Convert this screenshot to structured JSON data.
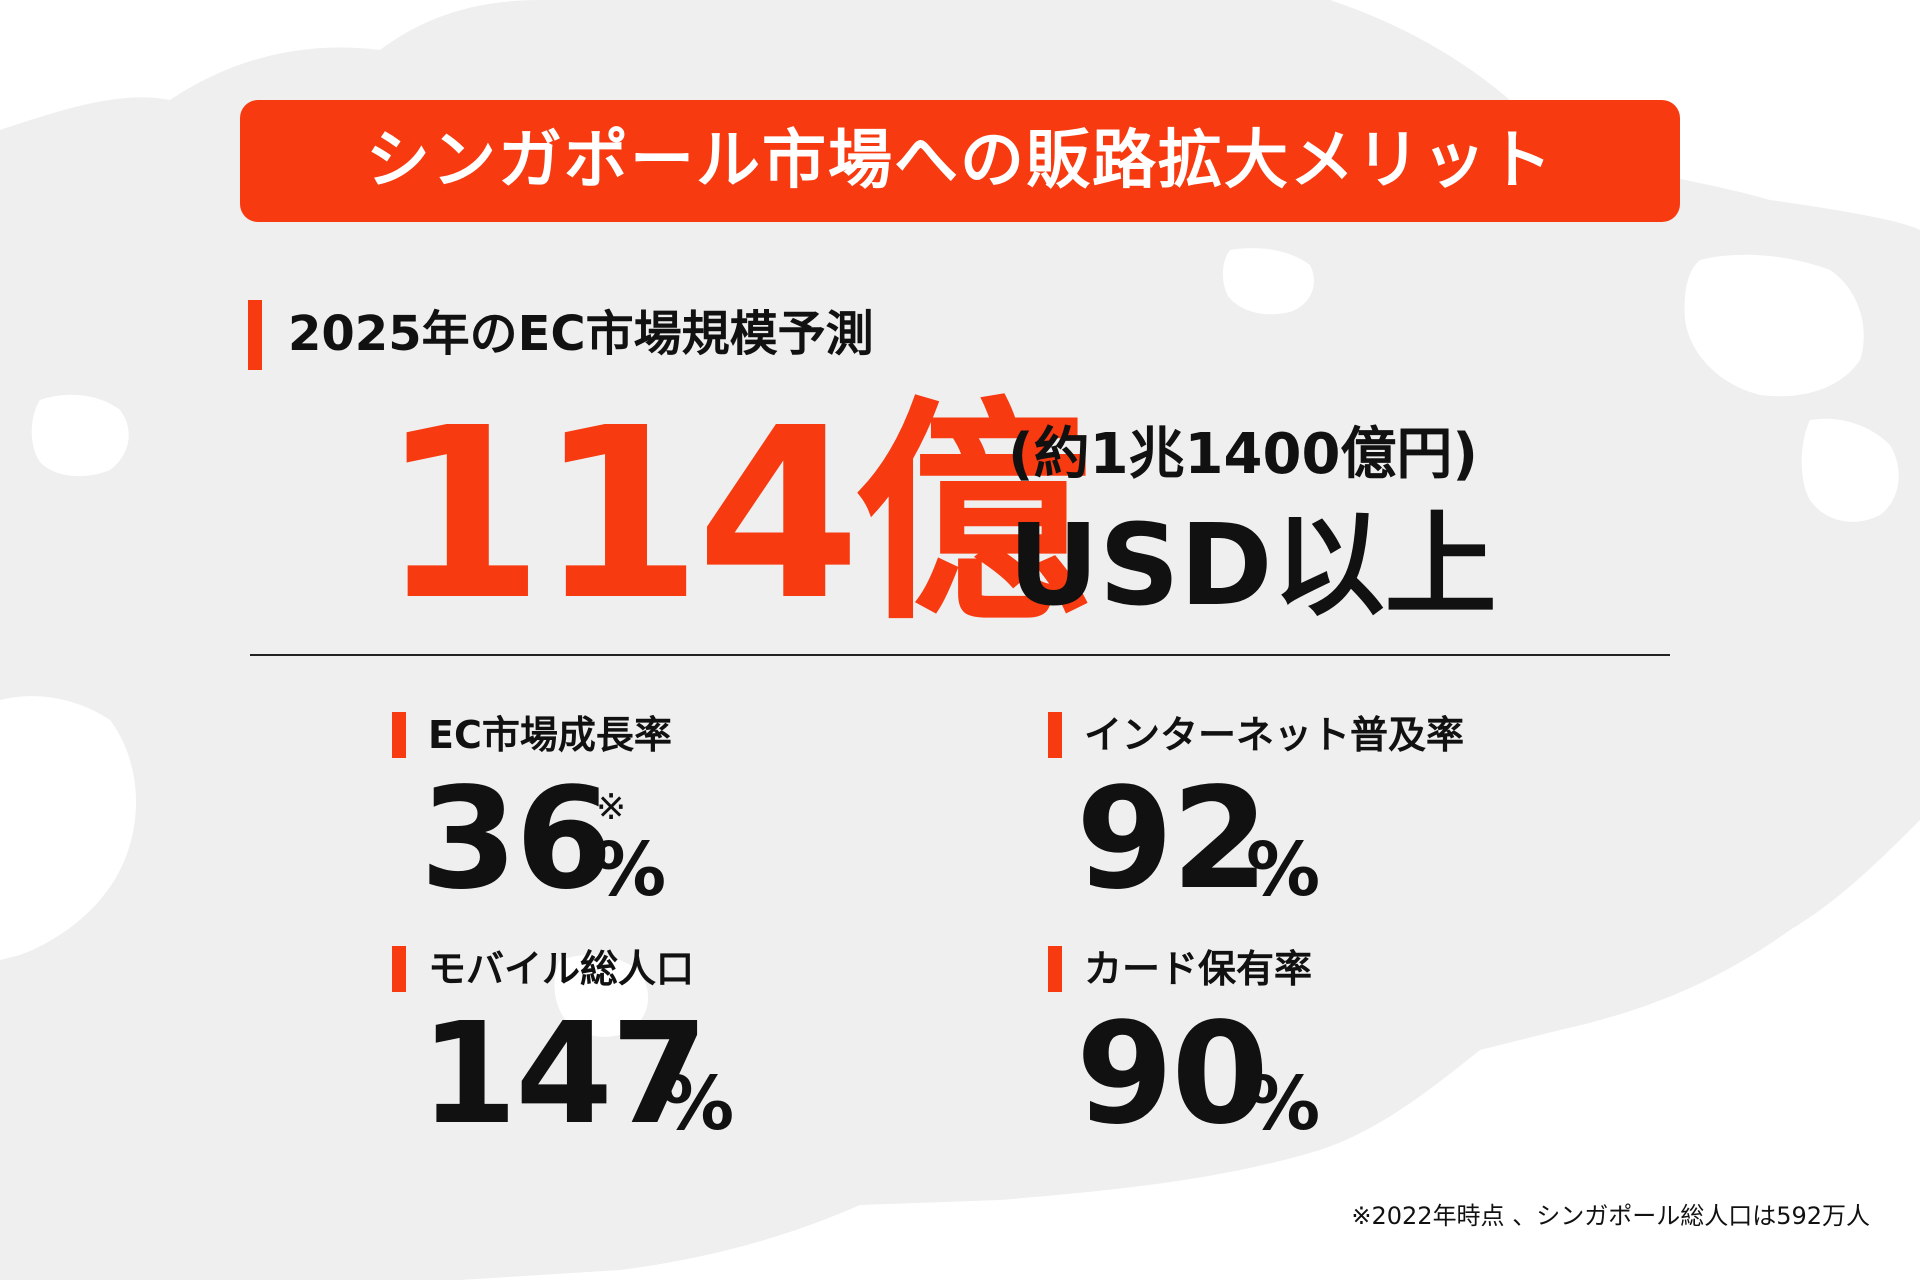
{
  "title": "シンガポール市場への販路拡大メリット",
  "colors": {
    "accent": "#f73a10",
    "text": "#111111",
    "map": "#efefef"
  },
  "market_forecast": {
    "heading": "2025年のEC市場規模予測",
    "value": "114億",
    "approx": "(約1兆1400億円)",
    "unit": "USD以上"
  },
  "stats": [
    {
      "label": "EC市場成長率",
      "value": "36",
      "unit": "%",
      "mark": "※"
    },
    {
      "label": "インターネット普及率",
      "value": "92",
      "unit": "%"
    },
    {
      "label": "モバイル総人口",
      "value": "147",
      "unit": "%"
    },
    {
      "label": "カード保有率",
      "value": "90",
      "unit": "%"
    }
  ],
  "footnote": "※2022年時点 、シンガポール総人口は592万人"
}
